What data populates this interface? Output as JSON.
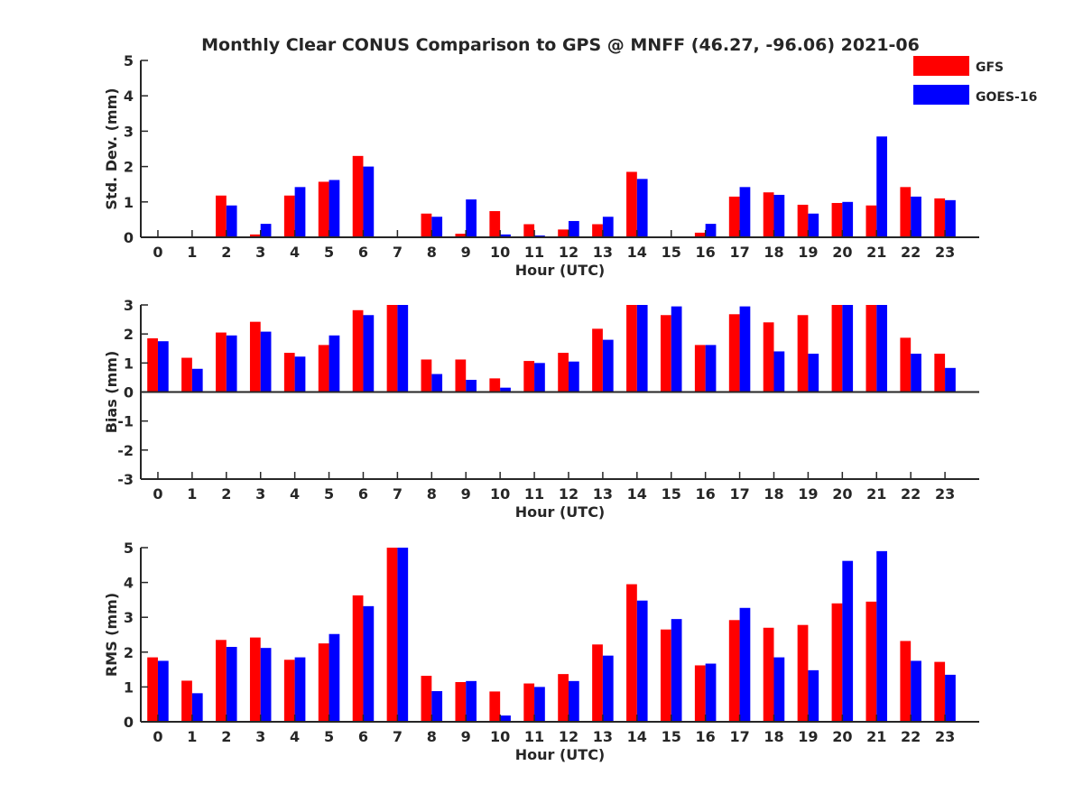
{
  "title": "Monthly Clear CONUS Comparison to GPS @ MNFF (46.27, -96.06) 2021-06",
  "legend": [
    {
      "name": "GFS",
      "color": "#ff0000"
    },
    {
      "name": "GOES-16",
      "color": "#0000ff"
    }
  ],
  "chart_data": [
    {
      "type": "bar",
      "title": "Monthly Clear CONUS Comparison to GPS @ MNFF (46.27, -96.06) 2021-06",
      "xlabel": "Hour (UTC)",
      "ylabel": "Std. Dev. (mm)",
      "ylim": [
        0,
        5
      ],
      "yticks": [
        0,
        1,
        2,
        3,
        4,
        5
      ],
      "categories": [
        "0",
        "1",
        "2",
        "3",
        "4",
        "5",
        "6",
        "7",
        "8",
        "9",
        "10",
        "11",
        "12",
        "13",
        "14",
        "15",
        "16",
        "17",
        "18",
        "19",
        "20",
        "21",
        "22",
        "23"
      ],
      "legend_position": "top-right",
      "series": [
        {
          "name": "GFS",
          "color": "#ff0000",
          "values": [
            0,
            0,
            1.18,
            0.08,
            1.18,
            1.57,
            2.3,
            0,
            0.67,
            0.1,
            0.74,
            0.37,
            0.22,
            0.37,
            1.85,
            0,
            0.13,
            1.15,
            1.27,
            0.92,
            0.97,
            0.9,
            1.42,
            1.1
          ]
        },
        {
          "name": "GOES-16",
          "color": "#0000ff",
          "values": [
            0,
            0,
            0.9,
            0.38,
            1.42,
            1.62,
            2.0,
            0,
            0.58,
            1.07,
            0.08,
            0.05,
            0.46,
            0.58,
            1.65,
            0,
            0.38,
            1.42,
            1.2,
            0.67,
            1.0,
            2.85,
            1.15,
            1.05
          ]
        }
      ]
    },
    {
      "type": "bar",
      "xlabel": "Hour (UTC)",
      "ylabel": "Bias (mm)",
      "ylim": [
        -3,
        3
      ],
      "yticks": [
        -3,
        -2,
        -1,
        0,
        1,
        2,
        3
      ],
      "categories": [
        "0",
        "1",
        "2",
        "3",
        "4",
        "5",
        "6",
        "7",
        "8",
        "9",
        "10",
        "11",
        "12",
        "13",
        "14",
        "15",
        "16",
        "17",
        "18",
        "19",
        "20",
        "21",
        "22",
        "23"
      ],
      "series": [
        {
          "name": "GFS",
          "color": "#ff0000",
          "values": [
            1.85,
            1.18,
            2.05,
            2.42,
            1.35,
            1.62,
            2.82,
            3.0,
            1.12,
            1.12,
            0.47,
            1.07,
            1.35,
            2.18,
            3.0,
            2.65,
            1.62,
            2.68,
            2.4,
            2.65,
            3.0,
            3.0,
            1.87,
            1.32
          ]
        },
        {
          "name": "GOES-16",
          "color": "#0000ff",
          "values": [
            1.75,
            0.8,
            1.95,
            2.08,
            1.22,
            1.95,
            2.65,
            3.0,
            0.62,
            0.42,
            0.15,
            1.0,
            1.05,
            1.8,
            3.0,
            2.95,
            1.62,
            2.95,
            1.4,
            1.32,
            3.0,
            3.0,
            1.32,
            0.83
          ]
        }
      ]
    },
    {
      "type": "bar",
      "xlabel": "Hour (UTC)",
      "ylabel": "RMS (mm)",
      "ylim": [
        0,
        5
      ],
      "yticks": [
        0,
        1,
        2,
        3,
        4,
        5
      ],
      "categories": [
        "0",
        "1",
        "2",
        "3",
        "4",
        "5",
        "6",
        "7",
        "8",
        "9",
        "10",
        "11",
        "12",
        "13",
        "14",
        "15",
        "16",
        "17",
        "18",
        "19",
        "20",
        "21",
        "22",
        "23"
      ],
      "series": [
        {
          "name": "GFS",
          "color": "#ff0000",
          "values": [
            1.85,
            1.18,
            2.35,
            2.42,
            1.78,
            2.25,
            3.63,
            5.0,
            1.32,
            1.14,
            0.87,
            1.1,
            1.37,
            2.22,
            3.95,
            2.65,
            1.62,
            2.92,
            2.7,
            2.78,
            3.4,
            3.45,
            2.32,
            1.72
          ]
        },
        {
          "name": "GOES-16",
          "color": "#0000ff",
          "values": [
            1.75,
            0.82,
            2.15,
            2.12,
            1.85,
            2.52,
            3.32,
            5.0,
            0.88,
            1.17,
            0.18,
            1.0,
            1.17,
            1.9,
            3.48,
            2.95,
            1.67,
            3.27,
            1.85,
            1.48,
            4.62,
            4.9,
            1.75,
            1.35
          ]
        }
      ]
    }
  ]
}
